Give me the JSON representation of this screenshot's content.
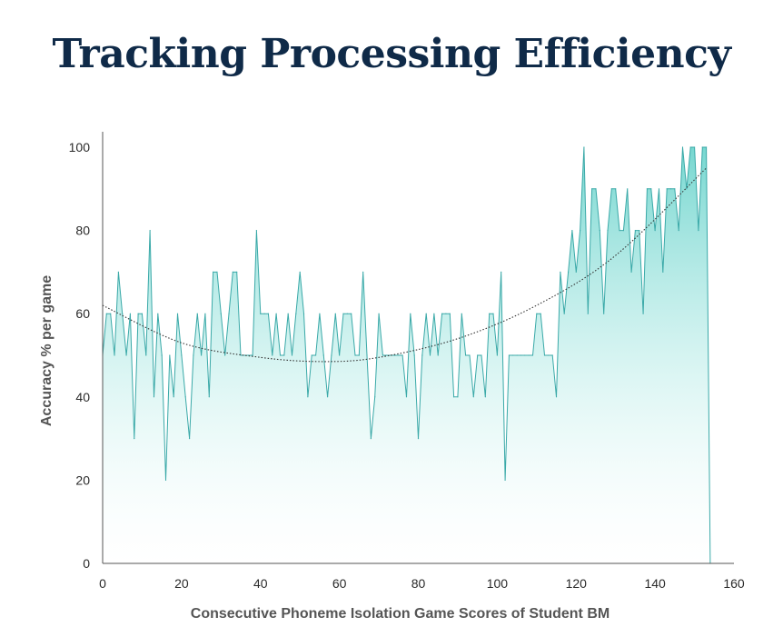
{
  "chart_data": {
    "type": "area",
    "title": "Tracking Processing Efficiency",
    "xlabel": "Consecutive Phoneme Isolation Game Scores of Student BM",
    "ylabel": "Accuracy % per game",
    "xlim": [
      0,
      160
    ],
    "ylim": [
      0,
      100
    ],
    "xticks": [
      0,
      20,
      40,
      60,
      80,
      100,
      120,
      140,
      160
    ],
    "yticks": [
      0,
      20,
      40,
      60,
      80,
      100
    ],
    "grid": false,
    "colors": {
      "line": "#3aa9a8",
      "fill_top": "#7fdcd6",
      "trend": "#333333"
    },
    "series": [
      {
        "values": [
          50,
          60,
          60,
          50,
          70,
          60,
          50,
          60,
          30,
          60,
          60,
          50,
          80,
          40,
          60,
          50,
          20,
          50,
          40,
          60,
          50,
          40,
          30,
          50,
          60,
          50,
          60,
          40,
          70,
          70,
          60,
          50,
          60,
          70,
          70,
          50,
          50,
          50,
          50,
          80,
          60,
          60,
          60,
          50,
          60,
          50,
          50,
          60,
          50,
          60,
          70,
          60,
          40,
          50,
          50,
          60,
          50,
          40,
          50,
          60,
          50,
          60,
          60,
          60,
          50,
          50,
          70,
          50,
          30,
          40,
          60,
          50,
          50,
          50,
          50,
          50,
          50,
          40,
          60,
          50,
          30,
          50,
          60,
          50,
          60,
          50,
          60,
          60,
          60,
          40,
          40,
          60,
          50,
          50,
          40,
          50,
          50,
          40,
          60,
          60,
          50,
          70,
          20,
          50,
          50,
          50,
          50,
          50,
          50,
          50,
          60,
          60,
          50,
          50,
          50,
          40,
          70,
          60,
          70,
          80,
          70,
          80,
          100,
          60,
          90,
          90,
          80,
          60,
          80,
          90,
          90,
          80,
          80,
          90,
          70,
          80,
          80,
          60,
          90,
          90,
          80,
          90,
          70,
          90,
          90,
          90,
          80,
          100,
          90,
          100,
          100,
          80,
          100,
          100,
          0
        ]
      }
    ],
    "trendline": {
      "type": "polynomial",
      "values_at": [
        [
          0,
          62
        ],
        [
          20,
          53
        ],
        [
          40,
          49.5
        ],
        [
          56,
          48.5
        ],
        [
          70,
          49.5
        ],
        [
          90,
          54
        ],
        [
          110,
          62
        ],
        [
          130,
          74
        ],
        [
          153,
          95
        ]
      ]
    }
  }
}
